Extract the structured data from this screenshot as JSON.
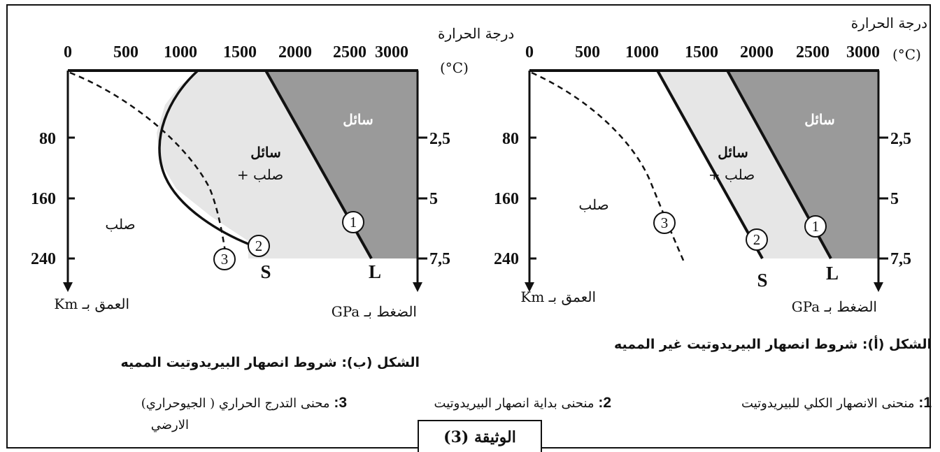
{
  "figure_b": {
    "caption": "الشكل (ب): شروط انصهار البيريدوتيت المميه",
    "temp_label": "درجة الحرارة",
    "temp_unit": "(°C)",
    "temp_ticks": [
      "0",
      "500",
      "1000",
      "1500",
      "2000",
      "2500",
      "3000"
    ],
    "depth_ticks": [
      "80",
      "160",
      "240"
    ],
    "pressure_ticks": [
      "2,5",
      "5",
      "7,5"
    ],
    "depth_axis_label": "العمق بـ Km",
    "pressure_axis_label": "الضغط بـ GPa",
    "region_liquid": "سائل",
    "region_mix_1": "سائل",
    "region_mix_2": "+ صلب",
    "region_solid": "صلب",
    "curve_S": "S",
    "curve_L": "L",
    "markers": [
      "1",
      "2",
      "3"
    ]
  },
  "figure_a": {
    "caption": "الشكل (أ): شروط انصهار البيريدوتيت غير المميه",
    "temp_label": "درجة الحرارة",
    "temp_unit": "(°C)",
    "temp_ticks": [
      "0",
      "500",
      "1000",
      "1500",
      "2000",
      "2500",
      "3000"
    ],
    "depth_ticks": [
      "80",
      "160",
      "240"
    ],
    "pressure_ticks": [
      "2,5",
      "5",
      "7,5"
    ],
    "depth_axis_label": "العمق بـ Km",
    "pressure_axis_label": "الضغط بـ GPa",
    "region_liquid": "سائل",
    "region_mix_1": "سائل",
    "region_mix_2": "+ صلب",
    "region_solid": "صلب",
    "curve_S": "S",
    "curve_L": "L",
    "markers": [
      "1",
      "2",
      "3"
    ]
  },
  "legend": {
    "item1_num": "1:",
    "item1_text": "منحنى الانصهار الكلي للبيريدوتيت",
    "item2_num": "2:",
    "item2_text": "منحنى بداية انصهار البيريدوتيت",
    "item3_num": "3:",
    "item3_text_line1": "محنى التدرج الحراري ( الجيوحراري)",
    "item3_text_line2": "الارضي"
  },
  "document_label": "الوثيقة (3)",
  "colors": {
    "liquid_fill": "#9a9a9a",
    "mix_fill": "#e6e6e6",
    "line": "#111111"
  }
}
